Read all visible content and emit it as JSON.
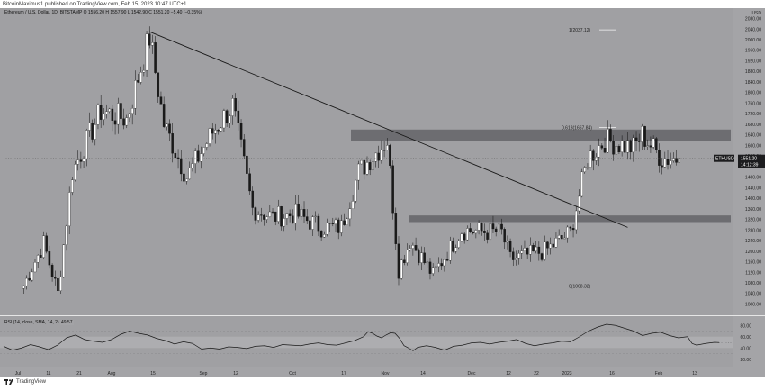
{
  "header": {
    "publisher": "BitcoinMaximus1 published on TradingView.com, Feb 15, 2023 10:47 UTC+1"
  },
  "legend": {
    "symbol": "Ethereum / U.S. Dollar, 1D, BITSTAMP",
    "ohlc": "O 1556.20  H 1557.90  L 1542.90  C 1551.20  −5.40 (−0.35%)"
  },
  "price_tag": {
    "symbol": "ETHUSD",
    "price": "1551.20",
    "countdown": "14:12:39"
  },
  "fib": {
    "top": "1(2037.12)",
    "mid": "0.618(1667.84)",
    "bottom": "0(1068.32)"
  },
  "rsi": {
    "title": "RSI (14, close, SMA, 14, 2)",
    "value": "49.57",
    "levels": [
      "80.00",
      "60.00",
      "40.00",
      "20.00"
    ]
  },
  "footer": {
    "brand": "TradingView"
  },
  "colors": {
    "up": "#ffffff",
    "down": "#1a1a1a",
    "background": "#a0a0a3",
    "zone": "#5c5c60",
    "trendline": "#1a1a1a",
    "rsi_line": "#1a1a1a",
    "rsi_band": "#adadb0"
  },
  "chart_data": {
    "type": "candlestick",
    "y_ticks": [
      "2080.00",
      "2040.00",
      "2000.00",
      "1960.00",
      "1920.00",
      "1880.00",
      "1840.00",
      "1800.00",
      "1760.00",
      "1720.00",
      "1680.00",
      "1640.00",
      "1600.00",
      "1560.00",
      "1520.00",
      "1480.00",
      "1440.00",
      "1400.00",
      "1360.00",
      "1320.00",
      "1280.00",
      "1240.00",
      "1200.00",
      "1160.00",
      "1120.00",
      "1080.00",
      "1040.00",
      "1000.00"
    ],
    "y_header": "USD",
    "x_ticks": [
      "Jul",
      "11",
      "21",
      "Aug",
      "15",
      "Sep",
      "12",
      "Oct",
      "17",
      "Nov",
      "14",
      "Dec",
      "12",
      "22",
      "2023",
      "16",
      "Feb",
      "13"
    ],
    "ylim": [
      988,
      2092
    ],
    "candles": [
      {
        "x": "2022-07-01",
        "close": 1070
      },
      {
        "x": "2022-07-08",
        "close": 1230
      },
      {
        "x": "2022-07-13",
        "close": 1040
      },
      {
        "x": "2022-07-18",
        "close": 1500
      },
      {
        "x": "2022-07-28",
        "close": 1730
      },
      {
        "x": "2022-08-06",
        "close": 1700
      },
      {
        "x": "2022-08-14",
        "close": 2010
      },
      {
        "x": "2022-08-19",
        "close": 1680
      },
      {
        "x": "2022-08-27",
        "close": 1480
      },
      {
        "x": "2022-09-05",
        "close": 1650
      },
      {
        "x": "2022-09-12",
        "close": 1750
      },
      {
        "x": "2022-09-19",
        "close": 1360
      },
      {
        "x": "2022-09-26",
        "close": 1330
      },
      {
        "x": "2022-10-04",
        "close": 1340
      },
      {
        "x": "2022-10-13",
        "close": 1290
      },
      {
        "x": "2022-10-20",
        "close": 1290
      },
      {
        "x": "2022-10-26",
        "close": 1500
      },
      {
        "x": "2022-11-05",
        "close": 1620
      },
      {
        "x": "2022-11-09",
        "close": 1130
      },
      {
        "x": "2022-11-13",
        "close": 1240
      },
      {
        "x": "2022-11-21",
        "close": 1110
      },
      {
        "x": "2022-12-01",
        "close": 1280
      },
      {
        "x": "2022-12-15",
        "close": 1270
      },
      {
        "x": "2022-12-18",
        "close": 1170
      },
      {
        "x": "2022-12-30",
        "close": 1200
      },
      {
        "x": "2023-01-08",
        "close": 1270
      },
      {
        "x": "2023-01-14",
        "close": 1550
      },
      {
        "x": "2023-01-20",
        "close": 1620
      },
      {
        "x": "2023-01-30",
        "close": 1590
      },
      {
        "x": "2023-02-02",
        "close": 1640
      },
      {
        "x": "2023-02-09",
        "close": 1550
      },
      {
        "x": "2023-02-15",
        "close": 1551.2
      }
    ],
    "fib_levels": [
      {
        "label": "1(2037.12)",
        "value": 2037.12
      },
      {
        "label": "0.618(1667.84)",
        "value": 1667.84
      },
      {
        "label": "0(1068.32)",
        "value": 1068.32
      }
    ],
    "zones": [
      {
        "name": "resistance",
        "from": 1616,
        "to": 1660
      },
      {
        "name": "support",
        "from": 1310,
        "to": 1335
      }
    ],
    "trendline": [
      {
        "x": "2022-08-14",
        "y": 2030
      },
      {
        "x": "2023-01-28",
        "y": 1290
      }
    ],
    "rsi": {
      "value": 49.57,
      "ylim": [
        10,
        90
      ],
      "band": [
        40,
        60
      ],
      "points": [
        [
          0,
          43
        ],
        [
          10,
          36
        ],
        [
          20,
          40
        ],
        [
          30,
          46
        ],
        [
          40,
          42
        ],
        [
          50,
          37
        ],
        [
          60,
          45
        ],
        [
          70,
          58
        ],
        [
          80,
          63
        ],
        [
          90,
          55
        ],
        [
          100,
          52
        ],
        [
          110,
          50
        ],
        [
          120,
          55
        ],
        [
          130,
          64
        ],
        [
          140,
          70
        ],
        [
          150,
          66
        ],
        [
          160,
          63
        ],
        [
          170,
          57
        ],
        [
          180,
          53
        ],
        [
          190,
          47
        ],
        [
          200,
          51
        ],
        [
          210,
          48
        ],
        [
          220,
          38
        ],
        [
          230,
          40
        ],
        [
          240,
          38
        ],
        [
          250,
          42
        ],
        [
          260,
          41
        ],
        [
          270,
          39
        ],
        [
          280,
          43
        ],
        [
          290,
          44
        ],
        [
          300,
          41
        ],
        [
          310,
          46
        ],
        [
          320,
          45
        ],
        [
          330,
          44
        ],
        [
          340,
          47
        ],
        [
          350,
          49
        ],
        [
          360,
          46
        ],
        [
          370,
          45
        ],
        [
          380,
          49
        ],
        [
          390,
          53
        ],
        [
          400,
          60
        ],
        [
          405,
          69
        ],
        [
          410,
          66
        ],
        [
          415,
          61
        ],
        [
          420,
          58
        ],
        [
          425,
          63
        ],
        [
          430,
          67
        ],
        [
          435,
          66
        ],
        [
          440,
          57
        ],
        [
          445,
          44
        ],
        [
          450,
          40
        ],
        [
          455,
          35
        ],
        [
          460,
          41
        ],
        [
          470,
          44
        ],
        [
          480,
          41
        ],
        [
          490,
          36
        ],
        [
          500,
          43
        ],
        [
          510,
          45
        ],
        [
          520,
          49
        ],
        [
          530,
          50
        ],
        [
          540,
          47
        ],
        [
          550,
          50
        ],
        [
          560,
          52
        ],
        [
          570,
          55
        ],
        [
          580,
          48
        ],
        [
          590,
          44
        ],
        [
          600,
          47
        ],
        [
          610,
          49
        ],
        [
          620,
          52
        ],
        [
          630,
          51
        ],
        [
          640,
          60
        ],
        [
          650,
          70
        ],
        [
          660,
          77
        ],
        [
          670,
          82
        ],
        [
          680,
          80
        ],
        [
          690,
          75
        ],
        [
          700,
          70
        ],
        [
          710,
          62
        ],
        [
          720,
          66
        ],
        [
          730,
          68
        ],
        [
          740,
          62
        ],
        [
          750,
          58
        ],
        [
          760,
          60
        ],
        [
          765,
          48
        ],
        [
          770,
          45
        ],
        [
          780,
          48
        ],
        [
          790,
          50
        ],
        [
          795,
          49.57
        ]
      ]
    }
  }
}
